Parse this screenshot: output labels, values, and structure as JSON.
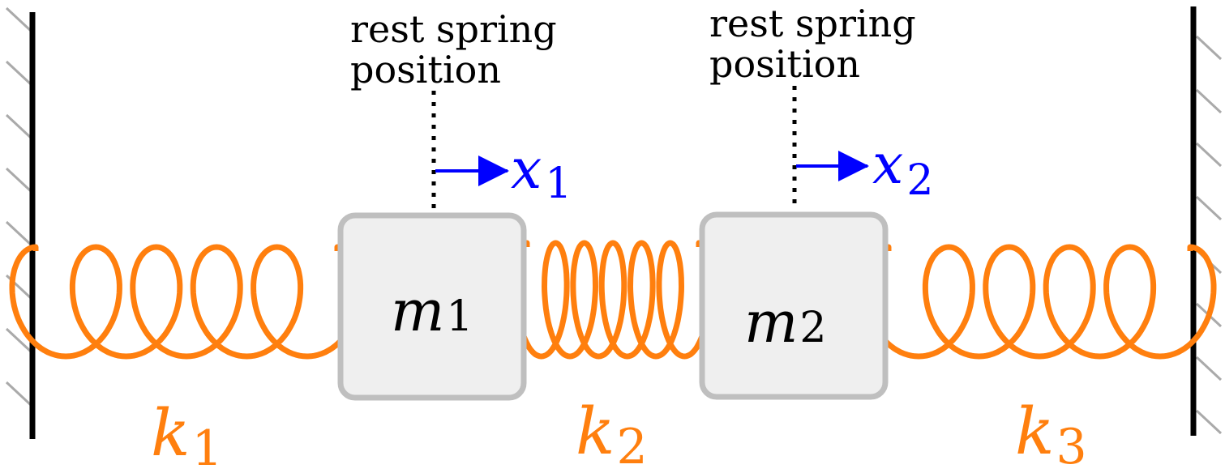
{
  "colors": {
    "wall": "#000000",
    "hatch": "#aaaaaa",
    "spring": "#ff7f0e",
    "mass_fill": "#efefef",
    "mass_stroke": "#bfbfbf",
    "arrow": "#0000ff",
    "text": "#000000"
  },
  "masses": [
    {
      "name": "m",
      "sub": "1"
    },
    {
      "name": "m",
      "sub": "2"
    }
  ],
  "springs": [
    {
      "name": "k",
      "sub": "1"
    },
    {
      "name": "k",
      "sub": "2"
    },
    {
      "name": "k",
      "sub": "3"
    }
  ],
  "displacements": [
    {
      "name": "x",
      "sub": "1"
    },
    {
      "name": "x",
      "sub": "2"
    }
  ],
  "rest_labels": [
    {
      "line1": "rest spring",
      "line2": "position"
    },
    {
      "line1": "rest spring",
      "line2": "position"
    }
  ]
}
